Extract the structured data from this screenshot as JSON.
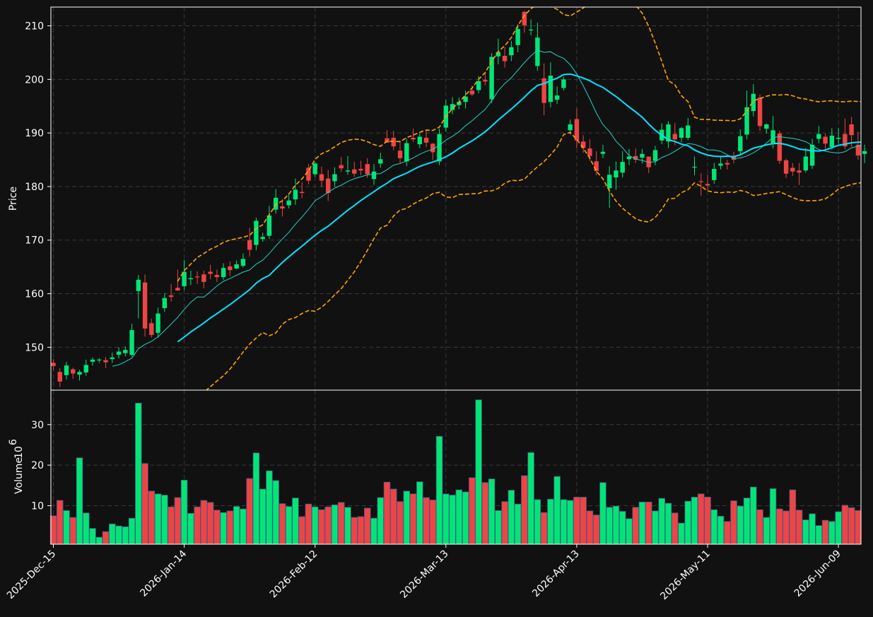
{
  "chart_data": {
    "type": "candlestick",
    "price_axis": {
      "label": "Price",
      "ylim": [
        142,
        213.5
      ],
      "ticks": [
        150,
        160,
        170,
        180,
        190,
        200,
        210
      ]
    },
    "volume_axis": {
      "label": "Volume",
      "exponent": "6",
      "ylim": [
        0.5,
        38.5
      ],
      "ticks": [
        10,
        20,
        30
      ]
    },
    "x_axis": {
      "tick_labels": [
        "2025-Dec-15",
        "2026-Jan-14",
        "2026-Feb-12",
        "2026-Mar-13",
        "2026-Apr-13",
        "2026-May-11",
        "2026-Jun-09"
      ],
      "tick_indices": [
        0,
        20,
        40,
        60,
        80,
        100,
        120
      ]
    },
    "grid": true,
    "colors": {
      "background": "#111111",
      "grid": "#3a3a3a",
      "up": "#00e676",
      "down": "#ef4444",
      "sma_fast": "#22d3c5",
      "sma_slow": "#00e5ff",
      "bollinger": "#ffa500",
      "axis_text": "#ffffff"
    },
    "overlays": {
      "sma_fast_window": 10,
      "sma_slow_window": 20,
      "bollinger_window": 20,
      "bollinger_std": 2
    },
    "closes": [
      146.5,
      143.6,
      146.6,
      145.1,
      145.4,
      146.7,
      147.7,
      147.7,
      147.2,
      148.1,
      149.2,
      149.5,
      153.2,
      162.6,
      153.5,
      152.3,
      156.3,
      159.2,
      159.4,
      160.6,
      164.1,
      162.9,
      163.1,
      162.2,
      163.7,
      163.1,
      164.8,
      164.4,
      165.5,
      166.5,
      168.2,
      173.6,
      170.6,
      174.6,
      177.9,
      175.9,
      177.4,
      179.4,
      178.8,
      181.1,
      184.3,
      181.1,
      178.8,
      182.3,
      183.4,
      183.0,
      182.4,
      183.0,
      182.3,
      182.8,
      185.1,
      188.2,
      187.5,
      185.3,
      188.1,
      188.8,
      189.3,
      188.2,
      186.4,
      189.8,
      195.1,
      195.4,
      195.8,
      196.8,
      197.2,
      199.7,
      199.6,
      204.2,
      205.1,
      203.4,
      206.0,
      209.4,
      210.1,
      209.3,
      207.8,
      195.6,
      200.7,
      197.0,
      200.0,
      191.6,
      188.6,
      187.2,
      185.7,
      182.9,
      186.5,
      182.2,
      183.0,
      184.6,
      185.6,
      185.0,
      186.1,
      183.6,
      186.8,
      190.6,
      191.6,
      188.8,
      190.9,
      191.4,
      183.7,
      180.9,
      180.2,
      183.3,
      184.3,
      184.1,
      185.0,
      189.4,
      194.8,
      197.3,
      191.3,
      191.6,
      190.5,
      184.8,
      182.4,
      182.8,
      182.6,
      185.6,
      187.8,
      189.8,
      188.0,
      189.5,
      189.1,
      187.5,
      189.6,
      185.8,
      186.6
    ],
    "opens": [
      147.1,
      145.4,
      144.8,
      145.9,
      144.9,
      145.3,
      147.3,
      147.7,
      147.6,
      147.8,
      148.6,
      148.9,
      148.6,
      160.5,
      162.1,
      154.5,
      152.7,
      157.3,
      159.7,
      161.1,
      161.4,
      162.7,
      163.2,
      163.6,
      164.1,
      163.5,
      163.1,
      165.1,
      164.7,
      165.2,
      170.0,
      169.1,
      170.2,
      170.8,
      175.7,
      176.3,
      176.5,
      177.6,
      179.0,
      183.5,
      182.3,
      182.3,
      181.5,
      181.0,
      184.0,
      182.8,
      183.2,
      183.3,
      184.2,
      181.4,
      184.3,
      189.0,
      189.1,
      186.7,
      184.7,
      189.1,
      187.9,
      189.1,
      188.0,
      184.7,
      191.0,
      194.3,
      195.2,
      195.8,
      197.9,
      198.0,
      199.9,
      196.3,
      204.3,
      204.4,
      204.5,
      206.4,
      212.6,
      209.2,
      202.5,
      200.2,
      195.8,
      196.2,
      198.4,
      190.5,
      192.6,
      188.4,
      187.1,
      184.7,
      186.1,
      179.7,
      181.7,
      182.6,
      185.1,
      185.7,
      185.4,
      185.6,
      184.8,
      188.6,
      188.4,
      189.8,
      189.1,
      189.1,
      183.7,
      181.0,
      180.5,
      181.2,
      183.9,
      184.4,
      185.5,
      186.6,
      189.7,
      194.1,
      196.6,
      190.8,
      188.1,
      189.9,
      184.9,
      183.5,
      183.0,
      183.0,
      183.9,
      188.9,
      189.3,
      187.4,
      188.9,
      189.8,
      191.6,
      187.8,
      186.1
    ],
    "highs": [
      147.8,
      146.1,
      147.3,
      146.2,
      145.8,
      147.7,
      148.1,
      148.0,
      148.2,
      149.0,
      150.0,
      150.2,
      154.4,
      163.5,
      163.6,
      155.3,
      157.4,
      160.1,
      161.8,
      164.5,
      166.3,
      164.3,
      164.2,
      164.3,
      165.4,
      164.5,
      165.7,
      166.0,
      166.2,
      167.5,
      172.3,
      174.2,
      171.4,
      176.4,
      179.5,
      177.6,
      178.8,
      181.5,
      180.8,
      184.2,
      184.6,
      183.7,
      183.1,
      183.6,
      185.5,
      185.7,
      184.6,
      184.8,
      185.3,
      184.2,
      186.3,
      190.5,
      190.4,
      188.6,
      188.9,
      190.8,
      189.9,
      190.4,
      188.1,
      190.8,
      196.2,
      196.7,
      196.6,
      197.9,
      198.8,
      200.6,
      201.3,
      204.9,
      207.6,
      206.0,
      207.2,
      210.3,
      212.8,
      211.2,
      210.6,
      203.0,
      203.2,
      198.7,
      200.5,
      192.5,
      194.6,
      189.6,
      188.8,
      186.6,
      187.8,
      183.8,
      184.7,
      186.6,
      187.0,
      187.1,
      187.0,
      185.5,
      187.6,
      191.8,
      192.2,
      191.9,
      191.1,
      192.8,
      185.6,
      182.5,
      182.2,
      184.4,
      185.7,
      185.0,
      186.5,
      190.7,
      197.9,
      199.1,
      197.2,
      191.8,
      193.2,
      190.4,
      185.2,
      184.4,
      184.4,
      187.2,
      188.9,
      191.3,
      189.9,
      190.9,
      190.9,
      192.7,
      193.0,
      190.2,
      187.8
    ],
    "lows": [
      145.7,
      142.6,
      144.0,
      144.1,
      143.8,
      144.7,
      146.6,
      147.1,
      146.1,
      147.1,
      147.9,
      148.3,
      148.3,
      155.4,
      152.0,
      151.8,
      151.8,
      156.6,
      158.5,
      160.5,
      160.7,
      161.6,
      161.8,
      161.0,
      162.7,
      162.2,
      162.6,
      163.3,
      164.6,
      164.9,
      166.9,
      168.1,
      169.7,
      170.2,
      174.9,
      174.4,
      175.9,
      176.6,
      177.8,
      180.4,
      181.8,
      179.9,
      177.3,
      180.0,
      182.7,
      182.2,
      181.8,
      182.1,
      181.6,
      180.3,
      183.5,
      188.2,
      186.8,
      184.3,
      183.8,
      188.3,
      187.2,
      187.4,
      185.0,
      184.0,
      190.2,
      193.5,
      194.4,
      194.6,
      196.9,
      197.4,
      198.9,
      195.6,
      202.8,
      202.2,
      203.4,
      205.1,
      208.7,
      208.2,
      201.6,
      193.3,
      194.8,
      195.4,
      197.9,
      189.7,
      187.2,
      186.3,
      184.8,
      182.1,
      185.3,
      176.0,
      179.4,
      181.7,
      184.0,
      184.4,
      184.3,
      182.5,
      184.0,
      187.9,
      187.2,
      187.7,
      188.3,
      188.7,
      182.1,
      178.3,
      179.3,
      180.5,
      183.2,
      183.2,
      184.3,
      186.0,
      188.8,
      193.1,
      190.4,
      189.9,
      187.1,
      184.2,
      181.6,
      182.0,
      180.3,
      182.6,
      183.3,
      188.1,
      186.8,
      186.9,
      188.0,
      186.9,
      187.4,
      185.0,
      184.4
    ],
    "volumes": [
      7.5,
      11.3,
      8.8,
      7.1,
      21.8,
      8.2,
      4.4,
      2.2,
      3.6,
      5.5,
      5.0,
      4.8,
      6.9,
      35.3,
      20.4,
      13.6,
      12.9,
      12.6,
      9.7,
      12.0,
      16.3,
      8.1,
      9.7,
      11.3,
      10.8,
      8.9,
      8.3,
      8.7,
      9.8,
      9.2,
      16.7,
      23.0,
      14.1,
      18.6,
      16.2,
      10.5,
      9.8,
      11.9,
      7.3,
      10.4,
      9.7,
      9.0,
      9.7,
      10.2,
      10.8,
      9.6,
      7.1,
      7.3,
      9.4,
      6.9,
      12.0,
      15.8,
      14.1,
      11.0,
      13.6,
      12.9,
      15.9,
      12.0,
      11.4,
      27.1,
      12.9,
      12.6,
      13.9,
      13.4,
      16.9,
      36.1,
      15.7,
      16.6,
      8.8,
      11.0,
      13.8,
      10.4,
      17.4,
      23.1,
      11.5,
      8.3,
      11.6,
      17.2,
      11.5,
      11.3,
      12.1,
      12.1,
      8.7,
      7.7,
      15.7,
      9.6,
      9.9,
      8.6,
      6.8,
      9.6,
      10.9,
      10.9,
      8.7,
      11.8,
      10.6,
      8.2,
      5.7,
      11.1,
      12.1,
      12.9,
      12.1,
      9.0,
      7.4,
      6.1,
      11.2,
      9.9,
      11.9,
      14.6,
      9.0,
      7.1,
      14.2,
      9.2,
      8.7,
      13.9,
      8.9,
      6.5,
      8.0,
      5.1,
      6.4,
      6.1,
      8.5,
      10.1,
      9.5,
      8.8
    ]
  }
}
